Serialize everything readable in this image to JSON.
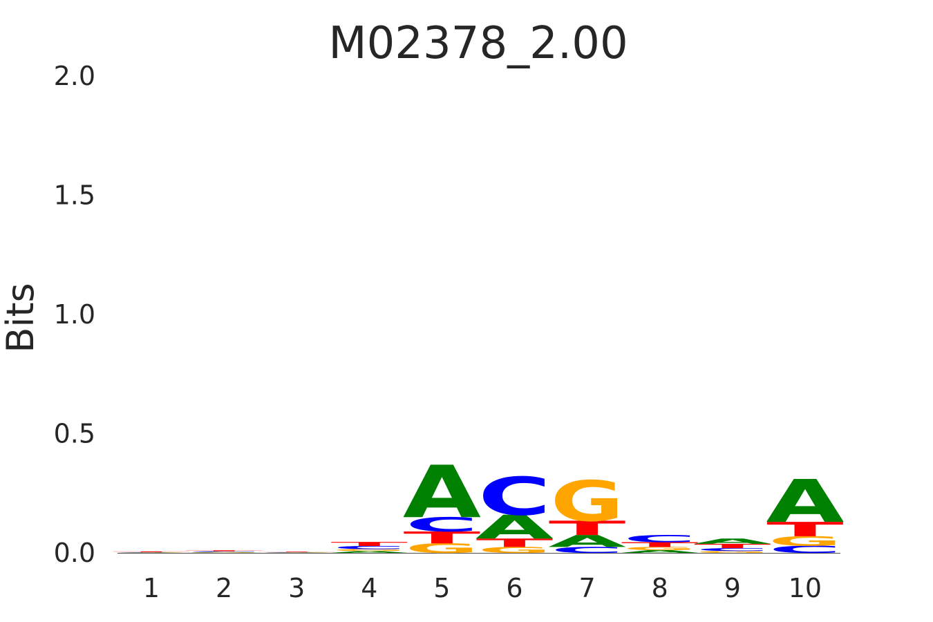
{
  "chart_data": {
    "type": "sequence-logo",
    "title": "M02378_2.00",
    "ylabel": "Bits",
    "xlabel": "",
    "ylim": [
      0,
      2
    ],
    "y_ticks": [
      "0.0",
      "0.5",
      "1.0",
      "1.5",
      "2.0"
    ],
    "y_tick_values": [
      0,
      0.5,
      1.0,
      1.5,
      2.0
    ],
    "x_ticks": [
      "1",
      "2",
      "3",
      "4",
      "5",
      "6",
      "7",
      "8",
      "9",
      "10"
    ],
    "grid": false,
    "colors": {
      "A": "#008000",
      "C": "#0000ff",
      "G": "#ffa500",
      "T": "#ff0000"
    },
    "positions": [
      {
        "position": "1",
        "stack": [
          {
            "base": "G",
            "bits": 0.001
          },
          {
            "base": "A",
            "bits": 0.001
          },
          {
            "base": "C",
            "bits": 0.001
          },
          {
            "base": "T",
            "bits": 0.003
          }
        ]
      },
      {
        "position": "2",
        "stack": [
          {
            "base": "G",
            "bits": 0.002
          },
          {
            "base": "A",
            "bits": 0.002
          },
          {
            "base": "C",
            "bits": 0.003
          },
          {
            "base": "T",
            "bits": 0.004
          }
        ]
      },
      {
        "position": "3",
        "stack": [
          {
            "base": "G",
            "bits": 0.001
          },
          {
            "base": "A",
            "bits": 0.001
          },
          {
            "base": "C",
            "bits": 0.001
          },
          {
            "base": "T",
            "bits": 0.002
          }
        ]
      },
      {
        "position": "4",
        "stack": [
          {
            "base": "A",
            "bits": 0.008
          },
          {
            "base": "G",
            "bits": 0.008
          },
          {
            "base": "C",
            "bits": 0.013
          },
          {
            "base": "T",
            "bits": 0.017
          }
        ]
      },
      {
        "position": "5",
        "stack": [
          {
            "base": "G",
            "bits": 0.04
          },
          {
            "base": "T",
            "bits": 0.05
          },
          {
            "base": "C",
            "bits": 0.06
          },
          {
            "base": "A",
            "bits": 0.22
          }
        ]
      },
      {
        "position": "6",
        "stack": [
          {
            "base": "G",
            "bits": 0.025
          },
          {
            "base": "T",
            "bits": 0.035
          },
          {
            "base": "A",
            "bits": 0.1
          },
          {
            "base": "C",
            "bits": 0.16
          }
        ]
      },
      {
        "position": "7",
        "stack": [
          {
            "base": "C",
            "bits": 0.025
          },
          {
            "base": "A",
            "bits": 0.05
          },
          {
            "base": "T",
            "bits": 0.06
          },
          {
            "base": "G",
            "bits": 0.17
          }
        ]
      },
      {
        "position": "8",
        "stack": [
          {
            "base": "A",
            "bits": 0.012
          },
          {
            "base": "G",
            "bits": 0.013
          },
          {
            "base": "T",
            "bits": 0.02
          },
          {
            "base": "C",
            "bits": 0.03
          }
        ]
      },
      {
        "position": "9",
        "stack": [
          {
            "base": "G",
            "bits": 0.008
          },
          {
            "base": "C",
            "bits": 0.012
          },
          {
            "base": "T",
            "bits": 0.018
          },
          {
            "base": "A",
            "bits": 0.022
          }
        ]
      },
      {
        "position": "10",
        "stack": [
          {
            "base": "C",
            "bits": 0.03
          },
          {
            "base": "G",
            "bits": 0.04
          },
          {
            "base": "T",
            "bits": 0.06
          },
          {
            "base": "A",
            "bits": 0.18
          }
        ]
      }
    ]
  }
}
